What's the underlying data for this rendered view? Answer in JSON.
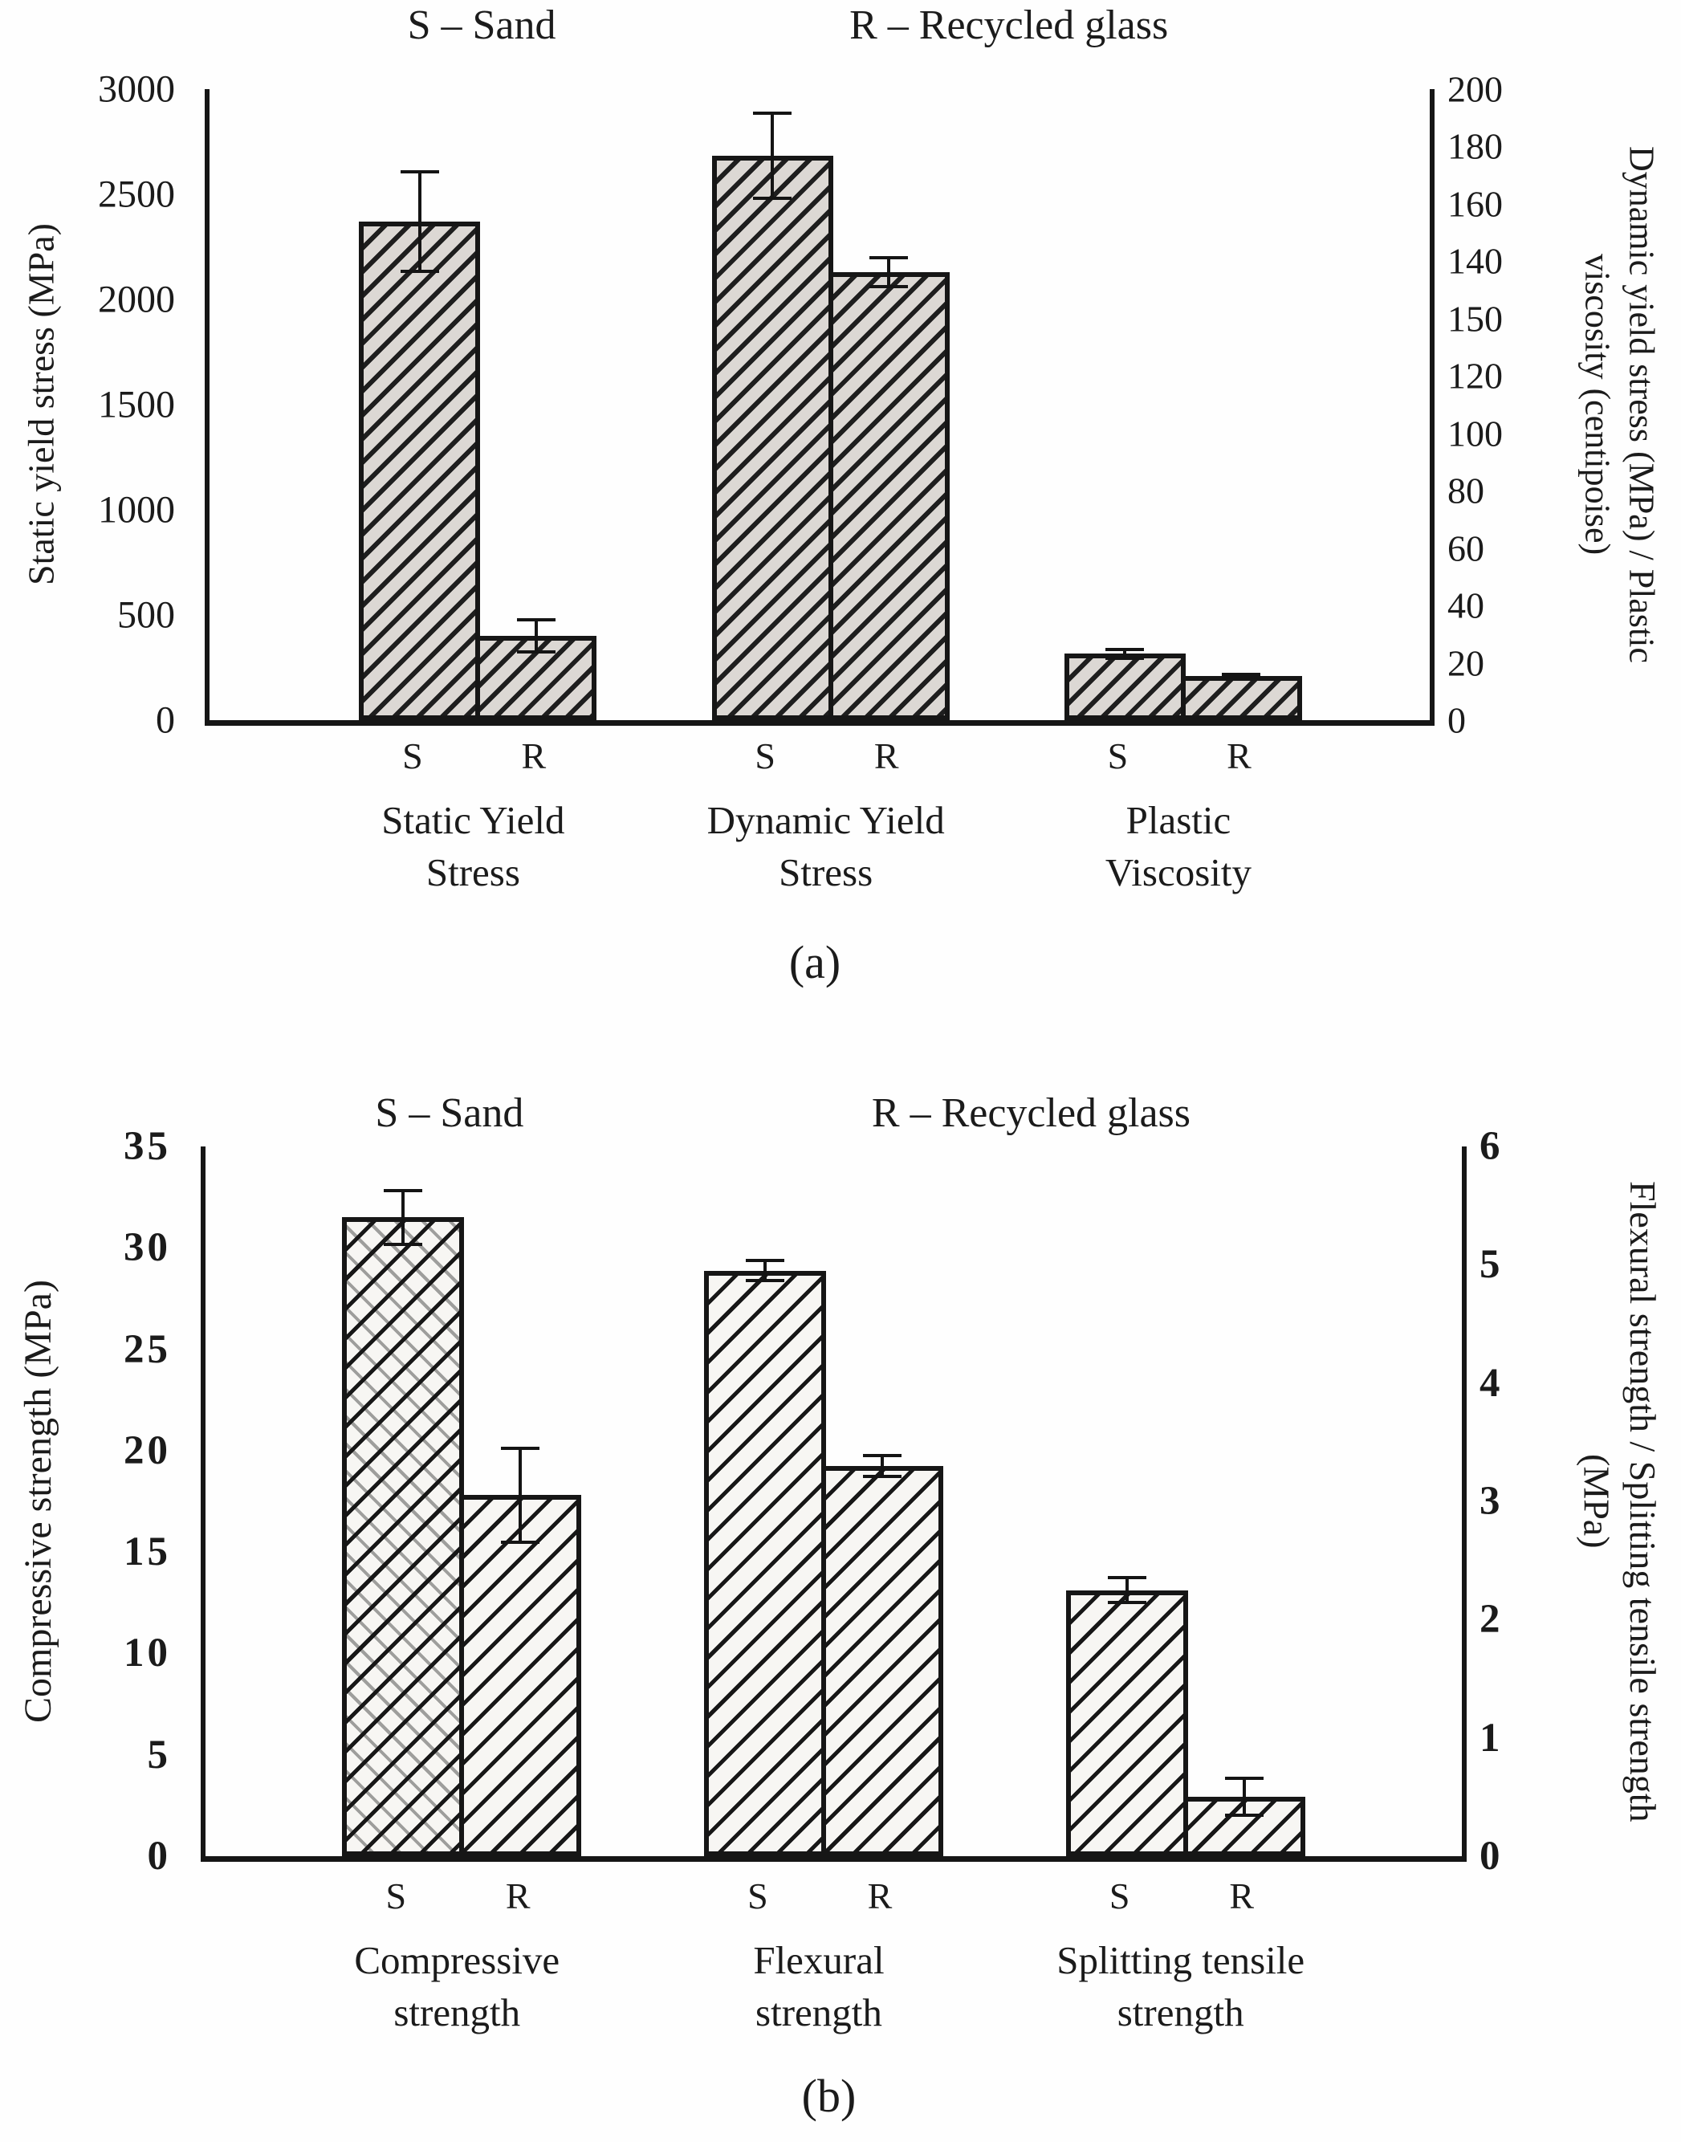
{
  "page": {
    "background": "#fefefe",
    "ink": "#1b1b1b",
    "bar_fill_panel_a": "#dcd8d4",
    "bar_fill_panel_b": "#f7f6f3"
  },
  "chart_data": [
    {
      "id": "a",
      "type": "bar",
      "panel_caption": "(a)",
      "legend": {
        "sand": "S – Sand",
        "recycled": "R – Recycled glass"
      },
      "series_labels": [
        "S",
        "R"
      ],
      "categories": [
        "Static Yield Stress",
        "Dynamic Yield Stress",
        "Plastic Viscosity"
      ],
      "left_axis": {
        "label": "Static yield stress (MPa)",
        "min": 0,
        "max": 3000,
        "ticks": [
          "3000",
          "2500",
          "2000",
          "1500",
          "1000",
          "500",
          "0"
        ]
      },
      "right_axis": {
        "label": "Dynamic yield stress (MPa) / Plastic viscosity (centipoise)",
        "min": 0,
        "max": 200,
        "ticks": [
          "200",
          "180",
          "160",
          "140",
          "150",
          "120",
          "100",
          "80",
          "60",
          "40",
          "20",
          "0"
        ]
      },
      "groups": [
        {
          "label": "Static Yield Stress",
          "label_lines": [
            "Static Yield",
            "Stress"
          ],
          "bars": [
            {
              "series": "S",
              "axis": "left",
              "value": 2370,
              "error": 245
            },
            {
              "series": "R",
              "axis": "left",
              "value": 400,
              "error": 85
            }
          ]
        },
        {
          "label": "Dynamic Yield Stress",
          "label_lines": [
            "Dynamic Yield",
            "Stress"
          ],
          "bars": [
            {
              "series": "S",
              "axis": "right",
              "value": 179,
              "error": 14
            },
            {
              "series": "R",
              "axis": "right",
              "value": 142,
              "error": 5
            }
          ]
        },
        {
          "label": "Plastic Viscosity",
          "label_lines": [
            "Plastic",
            "Viscosity"
          ],
          "bars": [
            {
              "series": "S",
              "axis": "right",
              "value": 21,
              "error": 2
            },
            {
              "series": "R",
              "axis": "right",
              "value": 14,
              "error": 1
            }
          ]
        }
      ]
    },
    {
      "id": "b",
      "type": "bar",
      "panel_caption": "(b)",
      "legend": {
        "sand": "S – Sand",
        "recycled": "R – Recycled glass"
      },
      "series_labels": [
        "S",
        "R"
      ],
      "categories": [
        "Compressive strength",
        "Flexural strength",
        "Splitting tensile strength"
      ],
      "left_axis": {
        "label": "Compressive strength (MPa)",
        "min": 0,
        "max": 35,
        "ticks": [
          "35",
          "30",
          "25",
          "20",
          "15",
          "10",
          "5",
          "0"
        ]
      },
      "right_axis": {
        "label": "Flexural strength / Splitting tensile strength (MPa)",
        "min": 0,
        "max": 6,
        "ticks": [
          "6",
          "5",
          "4",
          "3",
          "2",
          "1",
          "0"
        ]
      },
      "groups": [
        {
          "label": "Compressive strength",
          "label_lines": [
            "Compressive",
            "strength"
          ],
          "bars": [
            {
              "series": "S",
              "axis": "left",
              "value": 31.5,
              "error": 1.4,
              "crosshatch": true
            },
            {
              "series": "R",
              "axis": "left",
              "value": 17.8,
              "error": 2.4
            }
          ]
        },
        {
          "label": "Flexural strength",
          "label_lines": [
            "Flexural",
            "strength"
          ],
          "bars": [
            {
              "series": "S",
              "axis": "right",
              "value": 4.95,
              "error": 0.1
            },
            {
              "series": "R",
              "axis": "right",
              "value": 3.3,
              "error": 0.1
            }
          ]
        },
        {
          "label": "Splitting tensile strength",
          "label_lines": [
            "Splitting tensile",
            "strength"
          ],
          "bars": [
            {
              "series": "S",
              "axis": "right",
              "value": 2.25,
              "error": 0.12
            },
            {
              "series": "R",
              "axis": "right",
              "value": 0.5,
              "error": 0.17
            }
          ]
        }
      ]
    }
  ]
}
